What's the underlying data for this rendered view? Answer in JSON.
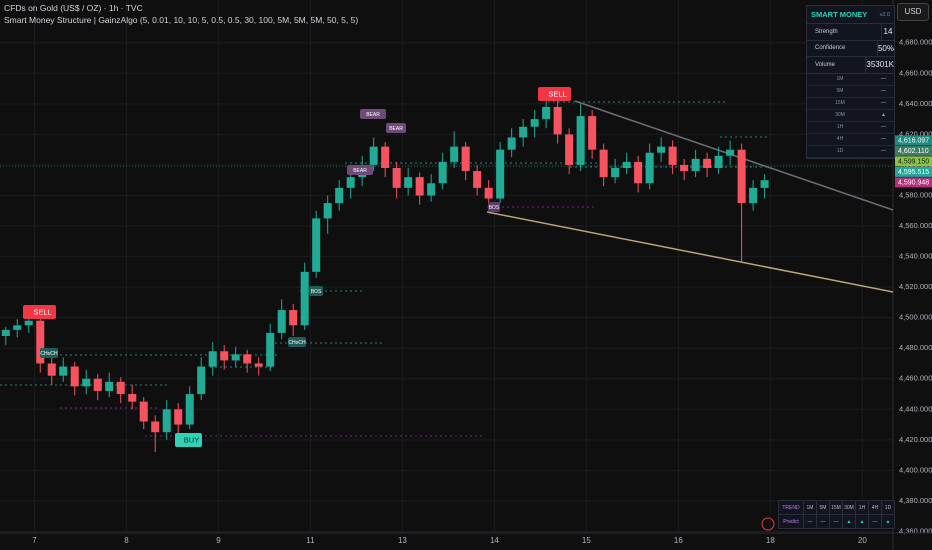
{
  "header": {
    "symbol": "CFDs on Gold (US$ / OZ) · 1h · TVC",
    "indicator": "Smart Money Structure | GainzAlgo (5, 0.01, 10, 10, 5, 0.5, 0.5, 30, 100, 5M, 5M, 5M, 50, 5, 5)"
  },
  "currency": "USD",
  "chart_data": {
    "type": "candlestick",
    "up_color": "#22ab94",
    "down_color": "#f7525f",
    "candles": [
      [
        4488,
        4494,
        4482,
        4492
      ],
      [
        4492,
        4499,
        4487,
        4495
      ],
      [
        4495,
        4502,
        4490,
        4498
      ],
      [
        4498,
        4500,
        4464,
        4470
      ],
      [
        4470,
        4476,
        4456,
        4462
      ],
      [
        4462,
        4474,
        4458,
        4468
      ],
      [
        4468,
        4471,
        4449,
        4455
      ],
      [
        4455,
        4466,
        4450,
        4460
      ],
      [
        4460,
        4463,
        4446,
        4452
      ],
      [
        4452,
        4464,
        4448,
        4458
      ],
      [
        4458,
        4461,
        4444,
        4450
      ],
      [
        4450,
        4456,
        4440,
        4445
      ],
      [
        4445,
        4448,
        4427,
        4432
      ],
      [
        4432,
        4436,
        4412,
        4425
      ],
      [
        4425,
        4446,
        4420,
        4440
      ],
      [
        4440,
        4444,
        4424,
        4430
      ],
      [
        4430,
        4455,
        4427,
        4450
      ],
      [
        4450,
        4474,
        4446,
        4468
      ],
      [
        4468,
        4484,
        4462,
        4478
      ],
      [
        4478,
        4482,
        4466,
        4472
      ],
      [
        4472,
        4481,
        4468,
        4476
      ],
      [
        4476,
        4479,
        4464,
        4470
      ],
      [
        4470,
        4474,
        4462,
        4468
      ],
      [
        4468,
        4496,
        4465,
        4490
      ],
      [
        4490,
        4512,
        4486,
        4505
      ],
      [
        4505,
        4509,
        4488,
        4495
      ],
      [
        4495,
        4536,
        4492,
        4530
      ],
      [
        4530,
        4570,
        4526,
        4565
      ],
      [
        4565,
        4580,
        4555,
        4575
      ],
      [
        4575,
        4590,
        4570,
        4585
      ],
      [
        4585,
        4596,
        4578,
        4592
      ],
      [
        4592,
        4606,
        4586,
        4600
      ],
      [
        4600,
        4618,
        4596,
        4612
      ],
      [
        4612,
        4615,
        4592,
        4598
      ],
      [
        4598,
        4602,
        4578,
        4585
      ],
      [
        4585,
        4598,
        4580,
        4592
      ],
      [
        4592,
        4595,
        4574,
        4580
      ],
      [
        4580,
        4594,
        4576,
        4588
      ],
      [
        4588,
        4608,
        4584,
        4602
      ],
      [
        4602,
        4622,
        4598,
        4612
      ],
      [
        4612,
        4615,
        4590,
        4596
      ],
      [
        4596,
        4600,
        4580,
        4585
      ],
      [
        4585,
        4590,
        4572,
        4578
      ],
      [
        4578,
        4615,
        4575,
        4610
      ],
      [
        4610,
        4624,
        4605,
        4618
      ],
      [
        4618,
        4630,
        4612,
        4625
      ],
      [
        4625,
        4636,
        4618,
        4630
      ],
      [
        4630,
        4644,
        4624,
        4638
      ],
      [
        4638,
        4642,
        4614,
        4620
      ],
      [
        4620,
        4624,
        4594,
        4600
      ],
      [
        4600,
        4640,
        4596,
        4632
      ],
      [
        4632,
        4636,
        4604,
        4610
      ],
      [
        4610,
        4614,
        4586,
        4592
      ],
      [
        4592,
        4604,
        4588,
        4598
      ],
      [
        4598,
        4608,
        4594,
        4602
      ],
      [
        4602,
        4606,
        4582,
        4588
      ],
      [
        4588,
        4614,
        4584,
        4608
      ],
      [
        4608,
        4618,
        4602,
        4612
      ],
      [
        4612,
        4616,
        4594,
        4600
      ],
      [
        4600,
        4604,
        4590,
        4596
      ],
      [
        4596,
        4610,
        4592,
        4604
      ],
      [
        4604,
        4608,
        4592,
        4598
      ],
      [
        4598,
        4612,
        4594,
        4606
      ],
      [
        4606,
        4616,
        4600,
        4610
      ],
      [
        4610,
        4614,
        4536,
        4575
      ],
      [
        4575,
        4590,
        4570,
        4585
      ],
      [
        4585,
        4594,
        4578,
        4590
      ]
    ],
    "xlim": [
      0,
      233
    ],
    "xticks": [
      {
        "value": 9,
        "label": "7"
      },
      {
        "value": 33,
        "label": "8"
      },
      {
        "value": 57,
        "label": "9"
      },
      {
        "value": 81,
        "label": "11"
      },
      {
        "value": 105,
        "label": "13"
      },
      {
        "value": 129,
        "label": "14"
      },
      {
        "value": 153,
        "label": "15"
      },
      {
        "value": 177,
        "label": "16"
      },
      {
        "value": 201,
        "label": "18"
      },
      {
        "value": 225,
        "label": "20"
      }
    ],
    "ylim": [
      4359,
      4708
    ],
    "yticks": [
      {
        "value": 4360,
        "label": "4,360.000"
      },
      {
        "value": 4380,
        "label": "4,380.000"
      },
      {
        "value": 4400,
        "label": "4,400.000"
      },
      {
        "value": 4420,
        "label": "4,420.000"
      },
      {
        "value": 4440,
        "label": "4,440.000"
      },
      {
        "value": 4460,
        "label": "4,460.000"
      },
      {
        "value": 4480,
        "label": "4,480.000"
      },
      {
        "value": 4500,
        "label": "4,500.000"
      },
      {
        "value": 4520,
        "label": "4,520.000"
      },
      {
        "value": 4540,
        "label": "4,540.000"
      },
      {
        "value": 4560,
        "label": "4,560.000"
      },
      {
        "value": 4580,
        "label": "4,580.000"
      },
      {
        "value": 4600,
        "label": "4,600.000"
      },
      {
        "value": 4620,
        "label": "4,620.000"
      },
      {
        "value": 4640,
        "label": "4,640.000"
      },
      {
        "value": 4660,
        "label": "4,660.000"
      },
      {
        "value": 4680,
        "label": "4,680.000"
      }
    ],
    "price_tags": [
      {
        "value": 4616.097,
        "label": "4,616.097",
        "color": "#1e8c80"
      },
      {
        "value": 4602.11,
        "label": "4,602.110",
        "color": "#3f7c66"
      },
      {
        "value": 4599.15,
        "label": "4,599.150",
        "color": "#8bc34a"
      },
      {
        "value": 4595.515,
        "label": "4,595.515",
        "color": "#26a69a"
      },
      {
        "value": 4590.948,
        "label": "4,590.948",
        "color": "#b5307a"
      }
    ],
    "annotations": [
      "SELL",
      "SELL",
      "BUY",
      "BEAR",
      "BEAR",
      "BEAR",
      "BOS",
      "CHoCH",
      "CHoCH",
      "BOS"
    ]
  },
  "panel": {
    "title": "SMART MONEY",
    "version": "v2.0",
    "rows": [
      [
        "Strength",
        "14"
      ],
      [
        "Confidence",
        "50%"
      ],
      [
        "Volume",
        "35301K"
      ]
    ],
    "timeframes": [
      [
        "1M",
        "—"
      ],
      [
        "5M",
        "—"
      ],
      [
        "15M",
        "—"
      ],
      [
        "30M",
        "▲"
      ],
      [
        "1H",
        "—"
      ],
      [
        "4H",
        "—"
      ],
      [
        "1D",
        "—"
      ]
    ]
  },
  "trend_table": {
    "header": [
      "TREND",
      "1M",
      "5M",
      "15M",
      "30M",
      "1H",
      "4H",
      "1D"
    ],
    "row": [
      "Predict",
      "—",
      "—",
      "—",
      "▲",
      "▲",
      "—",
      "▲"
    ]
  }
}
